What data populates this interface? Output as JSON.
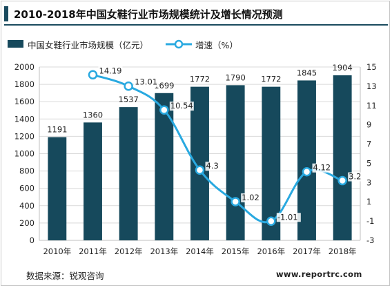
{
  "title": "2010-2018年中国女鞋行业市场规模统计及增长情况预测",
  "legend": {
    "bar_label": "中国女鞋行业市场规模（亿元）",
    "line_label": "增速（%）"
  },
  "source": "数据来源：锐观咨询",
  "website": "www.reportrc.com",
  "colors": {
    "bar": "#16495c",
    "line": "#29a9e0",
    "title_accent": "#1a4a5e"
  },
  "chart_data": {
    "type": "bar",
    "categories": [
      "2010年",
      "2011年",
      "2012年",
      "2013年",
      "2014年",
      "2015年",
      "2016年",
      "2017年",
      "2018年"
    ],
    "series": [
      {
        "name": "中国女鞋行业市场规模（亿元）",
        "type": "bar",
        "axis": "left",
        "values": [
          1191,
          1360,
          1537,
          1699,
          1772,
          1790,
          1772,
          1845,
          1904
        ],
        "labels": [
          "1191",
          "1360",
          "1537",
          "1699",
          "1772",
          "1790",
          "1772",
          "1845",
          "1904"
        ]
      },
      {
        "name": "增速（%）",
        "type": "line",
        "axis": "right",
        "values": [
          null,
          14.19,
          13.01,
          10.54,
          4.3,
          1.02,
          -1.01,
          4.12,
          3.2
        ],
        "labels": [
          "",
          "14.19",
          "13.01",
          "10.54",
          "4.3",
          "1.02",
          "-1.01",
          "4.12",
          "3.2"
        ]
      }
    ],
    "y_left": {
      "lim": [
        0,
        2000
      ],
      "ticks": [
        "0",
        "200",
        "400",
        "600",
        "800",
        "1000",
        "1200",
        "1400",
        "1600",
        "1800",
        "2000"
      ]
    },
    "y_right": {
      "lim": [
        -3,
        15
      ],
      "ticks": [
        "-3",
        "-1",
        "1",
        "3",
        "5",
        "7",
        "9",
        "11",
        "13",
        "15"
      ]
    },
    "grid": true,
    "legend_position": "top-left"
  }
}
